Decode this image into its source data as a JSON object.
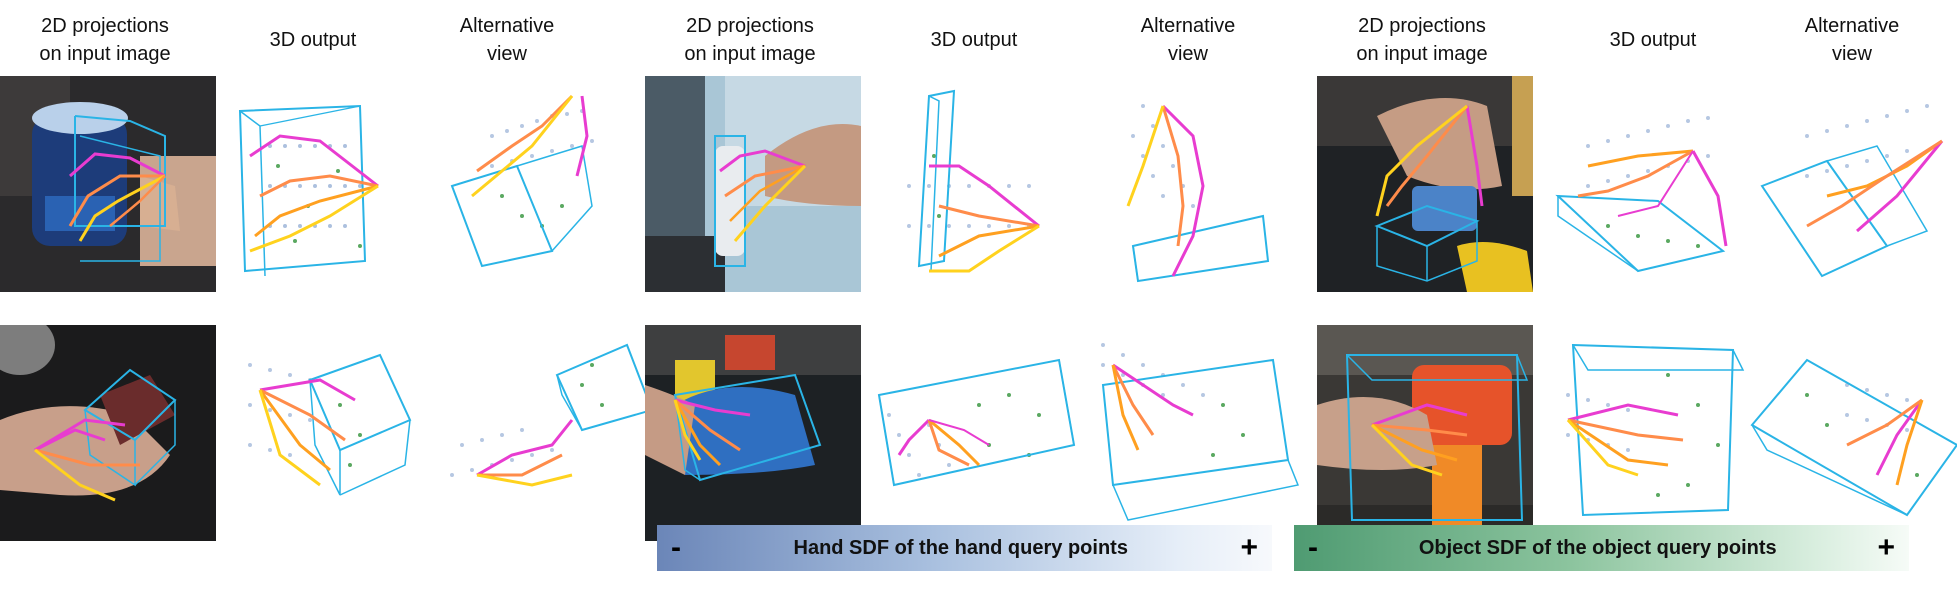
{
  "headers": {
    "proj": "2D projections\non input image",
    "out3d": "3D output",
    "alt": "Alternative\nview"
  },
  "legend": {
    "hand_label": "Hand SDF of the hand query points",
    "object_label": "Object SDF of the object query points",
    "minus": "-",
    "plus": "+",
    "hand_color": "#8aa6d0",
    "object_color": "#7dbb91"
  },
  "colors": {
    "bbox": "#2ab4e6",
    "joint_pink": "#e83cd0",
    "joint_orange": "#ff8c4a",
    "joint_yellow": "#ffd21e",
    "hand_sdf_dot": "#4a76b8",
    "object_sdf_dot": "#5aa860"
  }
}
